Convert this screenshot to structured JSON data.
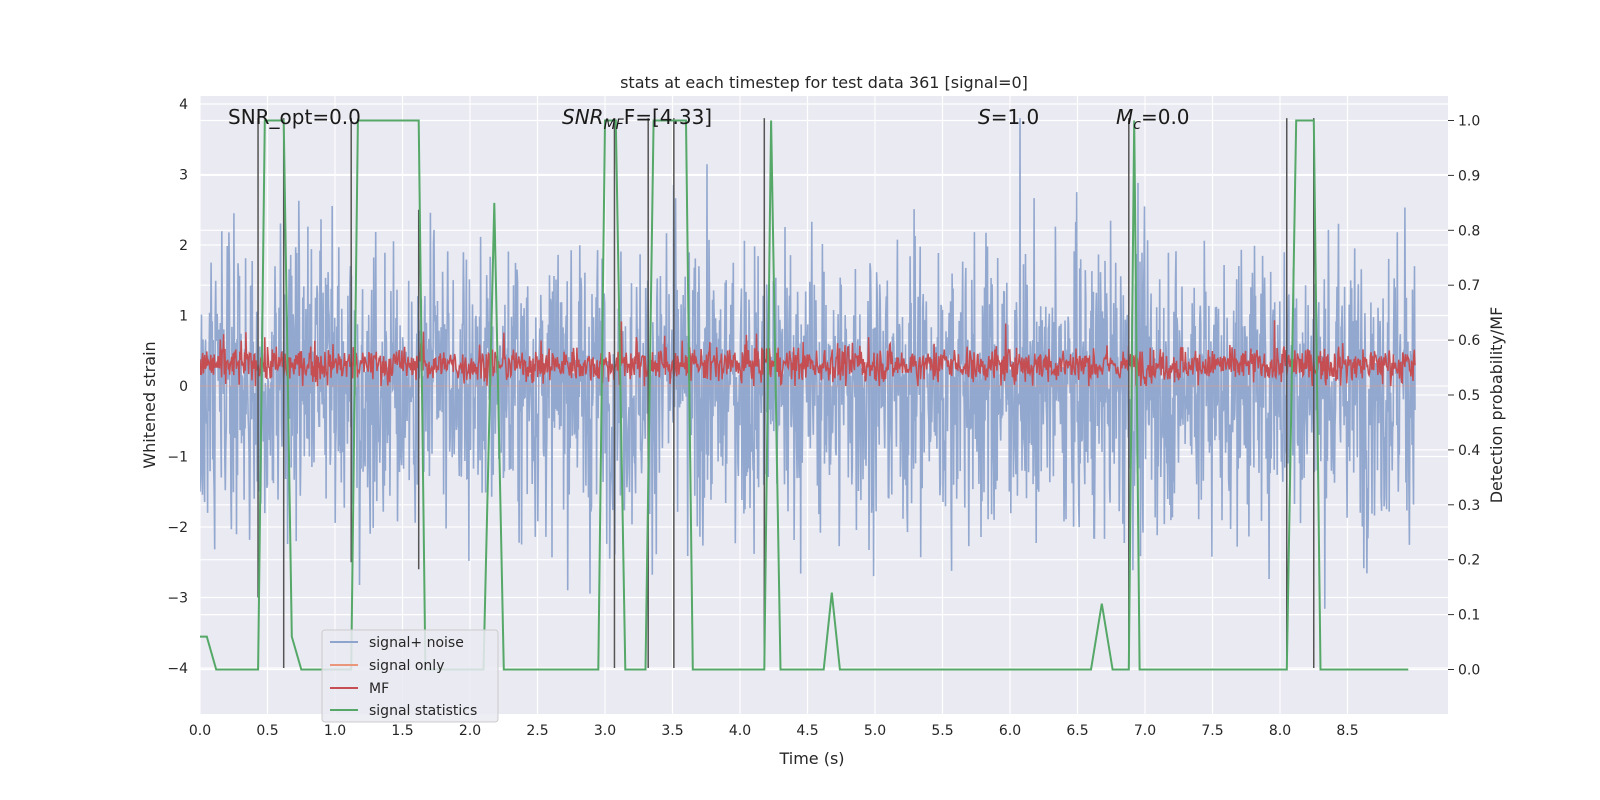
{
  "chart_data": {
    "type": "line",
    "title": "stats at each timestep for test data 361 [signal=0]",
    "xlabel": "Time (s)",
    "ylabel_left": "Whitened strain",
    "ylabel_right": "Detection probability/MF",
    "xlim": [
      0.0,
      9.0
    ],
    "ylim_left": [
      -4.4,
      4.1
    ],
    "ylim_right": [
      -0.05,
      1.05
    ],
    "x_ticks": [
      "0.0",
      "0.5",
      "1.0",
      "1.5",
      "2.0",
      "2.5",
      "3.0",
      "3.5",
      "4.0",
      "4.5",
      "5.0",
      "5.5",
      "6.0",
      "6.5",
      "7.0",
      "7.5",
      "8.0",
      "8.5"
    ],
    "y_left_ticks": [
      "4",
      "3",
      "2",
      "1",
      "0",
      "−1",
      "−2",
      "−3",
      "−4"
    ],
    "y_right_ticks": [
      "1.0",
      "0.9",
      "0.8",
      "0.7",
      "0.6",
      "0.5",
      "0.4",
      "0.3",
      "0.2",
      "0.1",
      "0.0"
    ],
    "grid": true,
    "legend_position": "lower-left",
    "annotations": {
      "snr_opt": "SNR_opt=0.0",
      "snr_mf_base": "SNR",
      "snr_mf_sub": "MF",
      "snr_mf_rest": "F=[4.33]",
      "s_italic": "S",
      "s_rest": "=1.0",
      "mc_italic": "M",
      "mc_sub": "c",
      "mc_rest": "=0.0"
    },
    "series": [
      {
        "name": "signal+ noise",
        "color": "#8ea4cc",
        "description_axis": "left",
        "x_range": [
          0.0,
          9.0
        ],
        "y_range": [
          -4.0,
          3.8
        ],
        "approx_std": 1.0
      },
      {
        "name": "signal only",
        "color": "#e9967a",
        "description_axis": "left",
        "values_constant": 0.0
      },
      {
        "name": "MF",
        "color": "#c44e52",
        "description_axis": "left",
        "x_range": [
          0.0,
          9.0
        ],
        "y_range": [
          0.0,
          1.0
        ],
        "approx_mean": 0.3
      },
      {
        "name": "signal statistics",
        "color": "#55a868",
        "description_axis": "right",
        "x": [
          0.0,
          0.05,
          0.12,
          0.43,
          0.48,
          0.62,
          0.68,
          0.75,
          1.12,
          1.17,
          1.62,
          1.67,
          2.1,
          2.18,
          2.25,
          2.95,
          3.0,
          3.08,
          3.15,
          3.3,
          3.36,
          3.6,
          3.65,
          4.18,
          4.23,
          4.3,
          4.62,
          4.68,
          4.74,
          4.8,
          6.6,
          6.68,
          6.76,
          6.88,
          6.92,
          6.96,
          7.02,
          8.05,
          8.12,
          8.25,
          8.3,
          8.95
        ],
        "y": [
          0.06,
          0.06,
          0.0,
          0.0,
          1.0,
          1.0,
          0.06,
          0.0,
          0.0,
          1.0,
          1.0,
          0.0,
          0.0,
          0.85,
          0.0,
          0.0,
          1.0,
          1.0,
          0.0,
          0.0,
          1.0,
          1.0,
          0.0,
          0.0,
          1.0,
          0.0,
          0.0,
          0.14,
          0.0,
          0.0,
          0.0,
          0.12,
          0.0,
          0.0,
          1.0,
          0.0,
          0.0,
          0.0,
          1.0,
          1.0,
          0.0,
          0.0
        ]
      },
      {
        "name": "",
        "color": "#555555",
        "type": "vertical-markers",
        "description_axis": "left",
        "markers": [
          {
            "x": 0.43,
            "y0": -3.0,
            "y1": 3.8
          },
          {
            "x": 0.62,
            "y0": -4.0,
            "y1": 3.8
          },
          {
            "x": 1.12,
            "y0": -2.5,
            "y1": 3.8
          },
          {
            "x": 1.62,
            "y0": -2.6,
            "y1": 2.5
          },
          {
            "x": 3.07,
            "y0": -4.0,
            "y1": 3.8
          },
          {
            "x": 3.32,
            "y0": -4.0,
            "y1": 3.8
          },
          {
            "x": 3.51,
            "y0": -4.0,
            "y1": 3.8
          },
          {
            "x": 4.18,
            "y0": -4.0,
            "y1": 3.8
          },
          {
            "x": 6.88,
            "y0": -4.0,
            "y1": 3.8
          },
          {
            "x": 8.05,
            "y0": -4.0,
            "y1": 3.8
          },
          {
            "x": 8.25,
            "y0": -4.0,
            "y1": 3.8
          }
        ]
      }
    ]
  },
  "legend": {
    "items": [
      {
        "label": "signal+ noise",
        "color": "#8ea4cc"
      },
      {
        "label": "signal only",
        "color": "#e9967a"
      },
      {
        "label": "MF",
        "color": "#c44e52"
      },
      {
        "label": "signal statistics",
        "color": "#55a868"
      }
    ]
  },
  "colors": {
    "axes_bg": "#eaeaf2",
    "grid": "#ffffff",
    "noise_fill": "#9aadd0"
  }
}
